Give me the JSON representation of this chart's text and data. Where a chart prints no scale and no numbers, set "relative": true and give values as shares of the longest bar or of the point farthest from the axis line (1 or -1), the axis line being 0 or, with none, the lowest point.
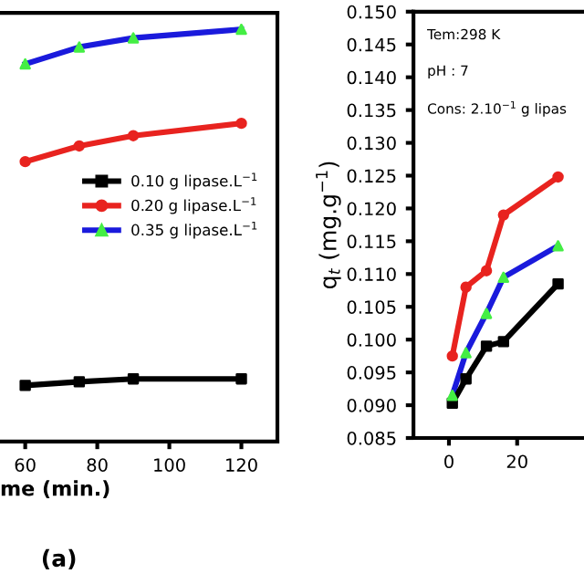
{
  "chart_data": [
    {
      "type": "line",
      "relative": true,
      "xlabel": "me (min.)",
      "xlim": [
        53,
        130
      ],
      "xticks": [
        60,
        80,
        100,
        120
      ],
      "tick_labels": "x",
      "legend": "center right",
      "grid": false,
      "annotations": [
        "(a)"
      ],
      "series": [
        {
          "name": "0.10 g lipase.L$^{−1}$",
          "color": "#000000",
          "marker": "square",
          "x": [
            60,
            75,
            90,
            120
          ],
          "values": [
            0.136,
            0.145,
            0.152,
            0.152
          ]
        },
        {
          "name": "0.20 g lipase.L$^{−1}$",
          "color": "#e8231f",
          "marker": "circle",
          "x": [
            60,
            75,
            90,
            120
          ],
          "values": [
            0.679,
            0.717,
            0.742,
            0.772
          ]
        },
        {
          "name": "0.35 g lipase.L$^{−1}$",
          "color": "#1a1adc",
          "colors": [
            "#44ee44",
            "#44ee44",
            "#44ee44",
            "#44ee44"
          ],
          "marker": "triangle",
          "x": [
            60,
            75,
            90,
            120
          ],
          "values": [
            0.916,
            0.957,
            0.979,
            1
          ]
        }
      ]
    },
    {
      "type": "line",
      "ylabel": "q$_{t}$ (mg.g$^{−1}$)",
      "xlim": [
        -10.4,
        39.6
      ],
      "xticks": [
        0,
        20
      ],
      "ylim": [
        0.085,
        0.15
      ],
      "yticks": [
        0.085,
        {
          "value": 0.09,
          "label": "0.090"
        },
        0.095,
        {
          "value": 0.1,
          "label": "0.100"
        },
        0.105,
        {
          "value": 0.11,
          "label": "0.110"
        },
        0.115,
        {
          "value": 0.12,
          "label": "0.120"
        },
        0.125,
        {
          "value": 0.13,
          "label": "0.130"
        },
        0.135,
        {
          "value": 0.14,
          "label": "0.140"
        },
        0.145,
        {
          "value": 0.15,
          "label": "0.150"
        }
      ],
      "grid": false,
      "legend": false,
      "annotations": [
        "Tem:298 K",
        "pH : 7",
        "Cons: 2.10$^{−1}$ g lipas"
      ],
      "series": [
        {
          "color": "#e8231f",
          "marker": "circle",
          "x": [
            1,
            5,
            11,
            16,
            32
          ],
          "values": [
            0.0975,
            0.108,
            0.1105,
            0.119,
            0.1248
          ]
        },
        {
          "color": "#1a1adc",
          "colors": [
            "#44ee44",
            "#44ee44",
            "#44ee44",
            "#44ee44",
            "#44ee44"
          ],
          "marker": "triangle",
          "x": [
            1,
            5,
            11,
            16,
            32
          ],
          "values": [
            0.0915,
            0.098,
            0.104,
            0.1095,
            0.1143
          ]
        },
        {
          "color": "#000000",
          "marker": "square",
          "x": [
            1,
            5,
            11,
            16,
            32
          ],
          "values": [
            0.0903,
            0.094,
            0.099,
            0.0997,
            0.1085
          ]
        }
      ]
    }
  ]
}
